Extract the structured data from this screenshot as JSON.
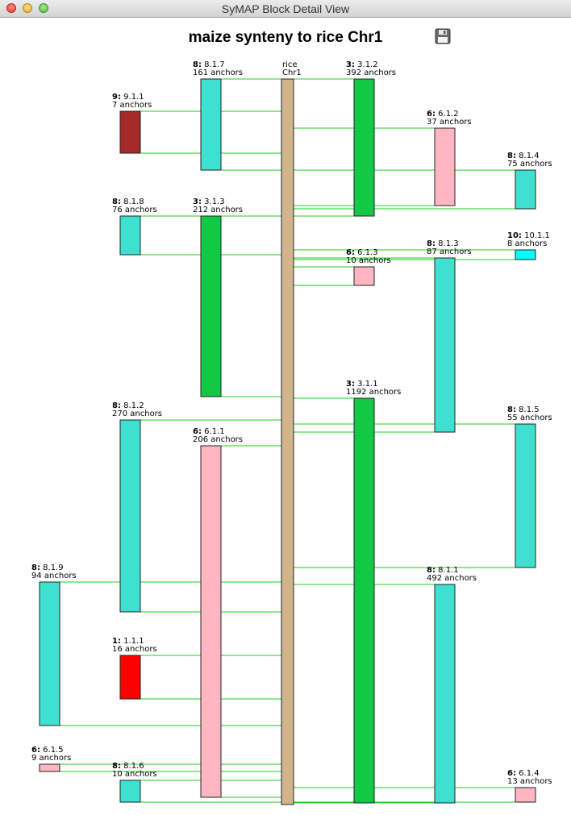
{
  "window": {
    "title": "SyMAP Block Detail View"
  },
  "view": {
    "title": "maize synteny to rice Chr1",
    "save_icon": "save-floppy-icon"
  },
  "colors": {
    "background": "#ffffff",
    "rice_chr": "#d2b48c",
    "line": "#22cc22",
    "chr1": "#ff0000",
    "chr3": "#14c845",
    "chr6": "#ffb6c1",
    "chr8": "#40e0d0",
    "chr9": "#a52a2a",
    "chr10": "#00ffff"
  },
  "reference": {
    "line1": "rice",
    "line2": "Chr1"
  },
  "blocks": [
    {
      "chr": "8:",
      "id": "8.1.7",
      "anchors": "161 anchors",
      "color": "chr8"
    },
    {
      "chr": "9:",
      "id": "9.1.1",
      "anchors": "7 anchors",
      "color": "chr9"
    },
    {
      "chr": "8:",
      "id": "8.1.8",
      "anchors": "76 anchors",
      "color": "chr8"
    },
    {
      "chr": "3:",
      "id": "3.1.3",
      "anchors": "212 anchors",
      "color": "chr3"
    },
    {
      "chr": "8:",
      "id": "8.1.2",
      "anchors": "270 anchors",
      "color": "chr8"
    },
    {
      "chr": "6:",
      "id": "6.1.1",
      "anchors": "206 anchors",
      "color": "chr6"
    },
    {
      "chr": "8:",
      "id": "8.1.9",
      "anchors": "94 anchors",
      "color": "chr8"
    },
    {
      "chr": "1:",
      "id": "1.1.1",
      "anchors": "16 anchors",
      "color": "chr1"
    },
    {
      "chr": "6:",
      "id": "6.1.5",
      "anchors": "9 anchors",
      "color": "chr6"
    },
    {
      "chr": "8:",
      "id": "8.1.6",
      "anchors": "10 anchors",
      "color": "chr8"
    },
    {
      "chr": "3:",
      "id": "3.1.2",
      "anchors": "392 anchors",
      "color": "chr3"
    },
    {
      "chr": "6:",
      "id": "6.1.2",
      "anchors": "37 anchors",
      "color": "chr6"
    },
    {
      "chr": "8:",
      "id": "8.1.4",
      "anchors": "75 anchors",
      "color": "chr8"
    },
    {
      "chr": "6:",
      "id": "6.1.3",
      "anchors": "10 anchors",
      "color": "chr6"
    },
    {
      "chr": "8:",
      "id": "8.1.3",
      "anchors": "87 anchors",
      "color": "chr8"
    },
    {
      "chr": "10:",
      "id": "10.1.1",
      "anchors": "8 anchors",
      "color": "chr10"
    },
    {
      "chr": "3:",
      "id": "3.1.1",
      "anchors": "1192 anchors",
      "color": "chr3"
    },
    {
      "chr": "8:",
      "id": "8.1.5",
      "anchors": "55 anchors",
      "color": "chr8"
    },
    {
      "chr": "8:",
      "id": "8.1.1",
      "anchors": "492 anchors",
      "color": "chr8"
    },
    {
      "chr": "6:",
      "id": "6.1.4",
      "anchors": "13 anchors",
      "color": "chr6"
    }
  ]
}
